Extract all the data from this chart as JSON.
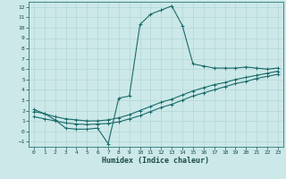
{
  "xlabel": "Humidex (Indice chaleur)",
  "bg_color": "#cce8e8",
  "line_color": "#1a6b6b",
  "xlim": [
    -0.5,
    23.5
  ],
  "ylim": [
    -1.5,
    12.5
  ],
  "xticks": [
    0,
    1,
    2,
    3,
    4,
    5,
    6,
    7,
    8,
    9,
    10,
    11,
    12,
    13,
    14,
    15,
    16,
    17,
    18,
    19,
    20,
    21,
    22,
    23
  ],
  "yticks": [
    -1,
    0,
    1,
    2,
    3,
    4,
    5,
    6,
    7,
    8,
    9,
    10,
    11,
    12
  ],
  "curve1_x": [
    0,
    1,
    2,
    3,
    4,
    5,
    6,
    7,
    8,
    9,
    10,
    11,
    12,
    13,
    14,
    15,
    16,
    17,
    18,
    19,
    20,
    21,
    22,
    23
  ],
  "curve1_y": [
    2.1,
    1.7,
    1.1,
    0.3,
    0.2,
    0.2,
    0.3,
    -1.2,
    3.2,
    3.4,
    10.3,
    11.3,
    11.7,
    12.1,
    10.2,
    6.5,
    6.3,
    6.1,
    6.1,
    6.1,
    6.2,
    6.1,
    6.0,
    6.1
  ],
  "curve2_x": [
    0,
    1,
    2,
    3,
    4,
    5,
    6,
    7,
    8,
    9,
    10,
    11,
    12,
    13,
    14,
    15,
    16,
    17,
    18,
    19,
    20,
    21,
    22,
    23
  ],
  "curve2_y": [
    1.9,
    1.7,
    1.4,
    1.2,
    1.1,
    1.0,
    1.0,
    1.1,
    1.3,
    1.6,
    2.0,
    2.4,
    2.8,
    3.1,
    3.5,
    3.9,
    4.2,
    4.5,
    4.7,
    5.0,
    5.2,
    5.4,
    5.6,
    5.8
  ],
  "curve3_x": [
    0,
    1,
    2,
    3,
    4,
    5,
    6,
    7,
    8,
    9,
    10,
    11,
    12,
    13,
    14,
    15,
    16,
    17,
    18,
    19,
    20,
    21,
    22,
    23
  ],
  "curve3_y": [
    1.4,
    1.2,
    1.0,
    0.8,
    0.7,
    0.65,
    0.7,
    0.75,
    0.9,
    1.2,
    1.5,
    1.9,
    2.3,
    2.6,
    3.0,
    3.4,
    3.7,
    4.0,
    4.3,
    4.6,
    4.8,
    5.1,
    5.3,
    5.5
  ],
  "grid_color": "#aed4d4",
  "tick_fontsize": 4.5,
  "label_fontsize": 6.0
}
